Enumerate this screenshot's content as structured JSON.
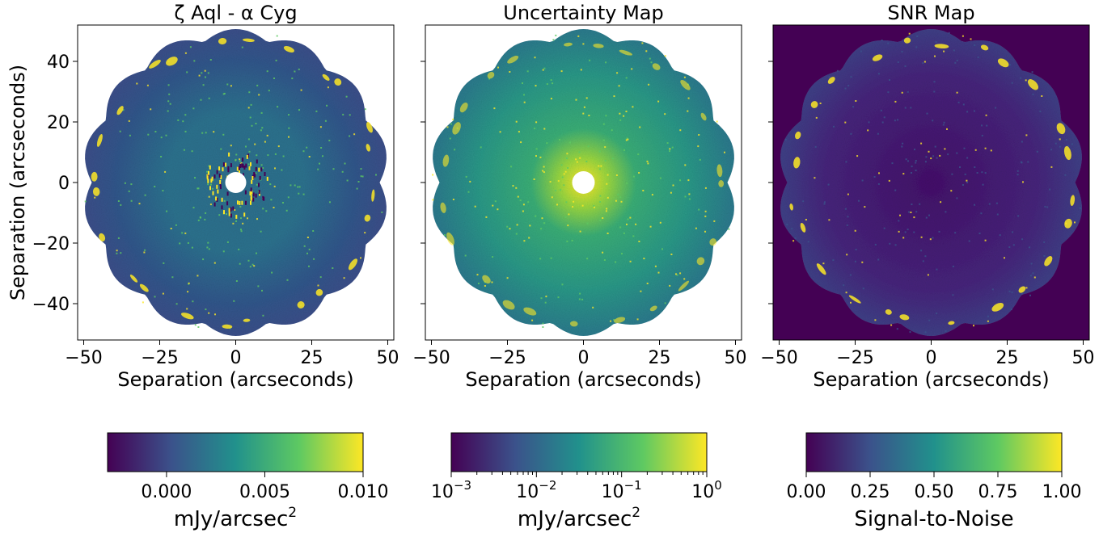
{
  "chart_data": [
    {
      "type": "heatmap",
      "title": "ζ Aql - α Cyg",
      "xlabel": "Separation (arcseconds)",
      "ylabel": "Separation (arcseconds)",
      "xlim": [
        -52,
        52
      ],
      "ylim": [
        -52,
        52
      ],
      "xticks": [
        -50,
        -25,
        0,
        25,
        50
      ],
      "yticks": [
        40,
        20,
        0,
        -20,
        -40
      ],
      "colorbar": {
        "label": "mJy/arcsec",
        "label_exponent": "2",
        "range": [
          -0.003,
          0.01
        ],
        "scale": "linear",
        "ticks": [
          0.0,
          0.005,
          0.01
        ],
        "tick_labels": [
          "0.000",
          "0.005",
          "0.010"
        ]
      }
    },
    {
      "type": "heatmap",
      "title": "Uncertainty Map",
      "xlabel": "Separation (arcseconds)",
      "xlim": [
        -52,
        52
      ],
      "ylim": [
        -52,
        52
      ],
      "xticks": [
        -50,
        -25,
        0,
        25,
        50
      ],
      "colorbar": {
        "label": "mJy/arcsec",
        "label_exponent": "2",
        "range": [
          0.001,
          1
        ],
        "scale": "log",
        "ticks": [
          0.001,
          0.01,
          0.1,
          1
        ],
        "tick_labels": [
          {
            "base": "10",
            "exp": "−3"
          },
          {
            "base": "10",
            "exp": "−2"
          },
          {
            "base": "10",
            "exp": "−1"
          },
          {
            "base": "10",
            "exp": "0"
          }
        ]
      }
    },
    {
      "type": "heatmap",
      "title": "SNR Map",
      "xlabel": "Separation (arcseconds)",
      "xlim": [
        -52,
        52
      ],
      "ylim": [
        -52,
        52
      ],
      "xticks": [
        -50,
        -25,
        0,
        25,
        50
      ],
      "colorbar": {
        "label": "Signal-to-Noise",
        "range": [
          0,
          1
        ],
        "scale": "linear",
        "ticks": [
          0.0,
          0.25,
          0.5,
          0.75,
          1.0
        ],
        "tick_labels": [
          "0.00",
          "0.25",
          "0.50",
          "0.75",
          "1.00"
        ]
      }
    }
  ],
  "tick_labels": {
    "x": [
      "−50",
      "−25",
      "0",
      "25",
      "50"
    ],
    "y": [
      "40",
      "20",
      "0",
      "−20",
      "−40"
    ]
  },
  "colormap": [
    "#440154",
    "#3b528b",
    "#21918c",
    "#5ec962",
    "#fde725"
  ],
  "colors": {
    "viridis_dark": "#440154",
    "viridis_mid": "#21918c",
    "viridis_yellow": "#fde725",
    "background": "#ffffff"
  }
}
